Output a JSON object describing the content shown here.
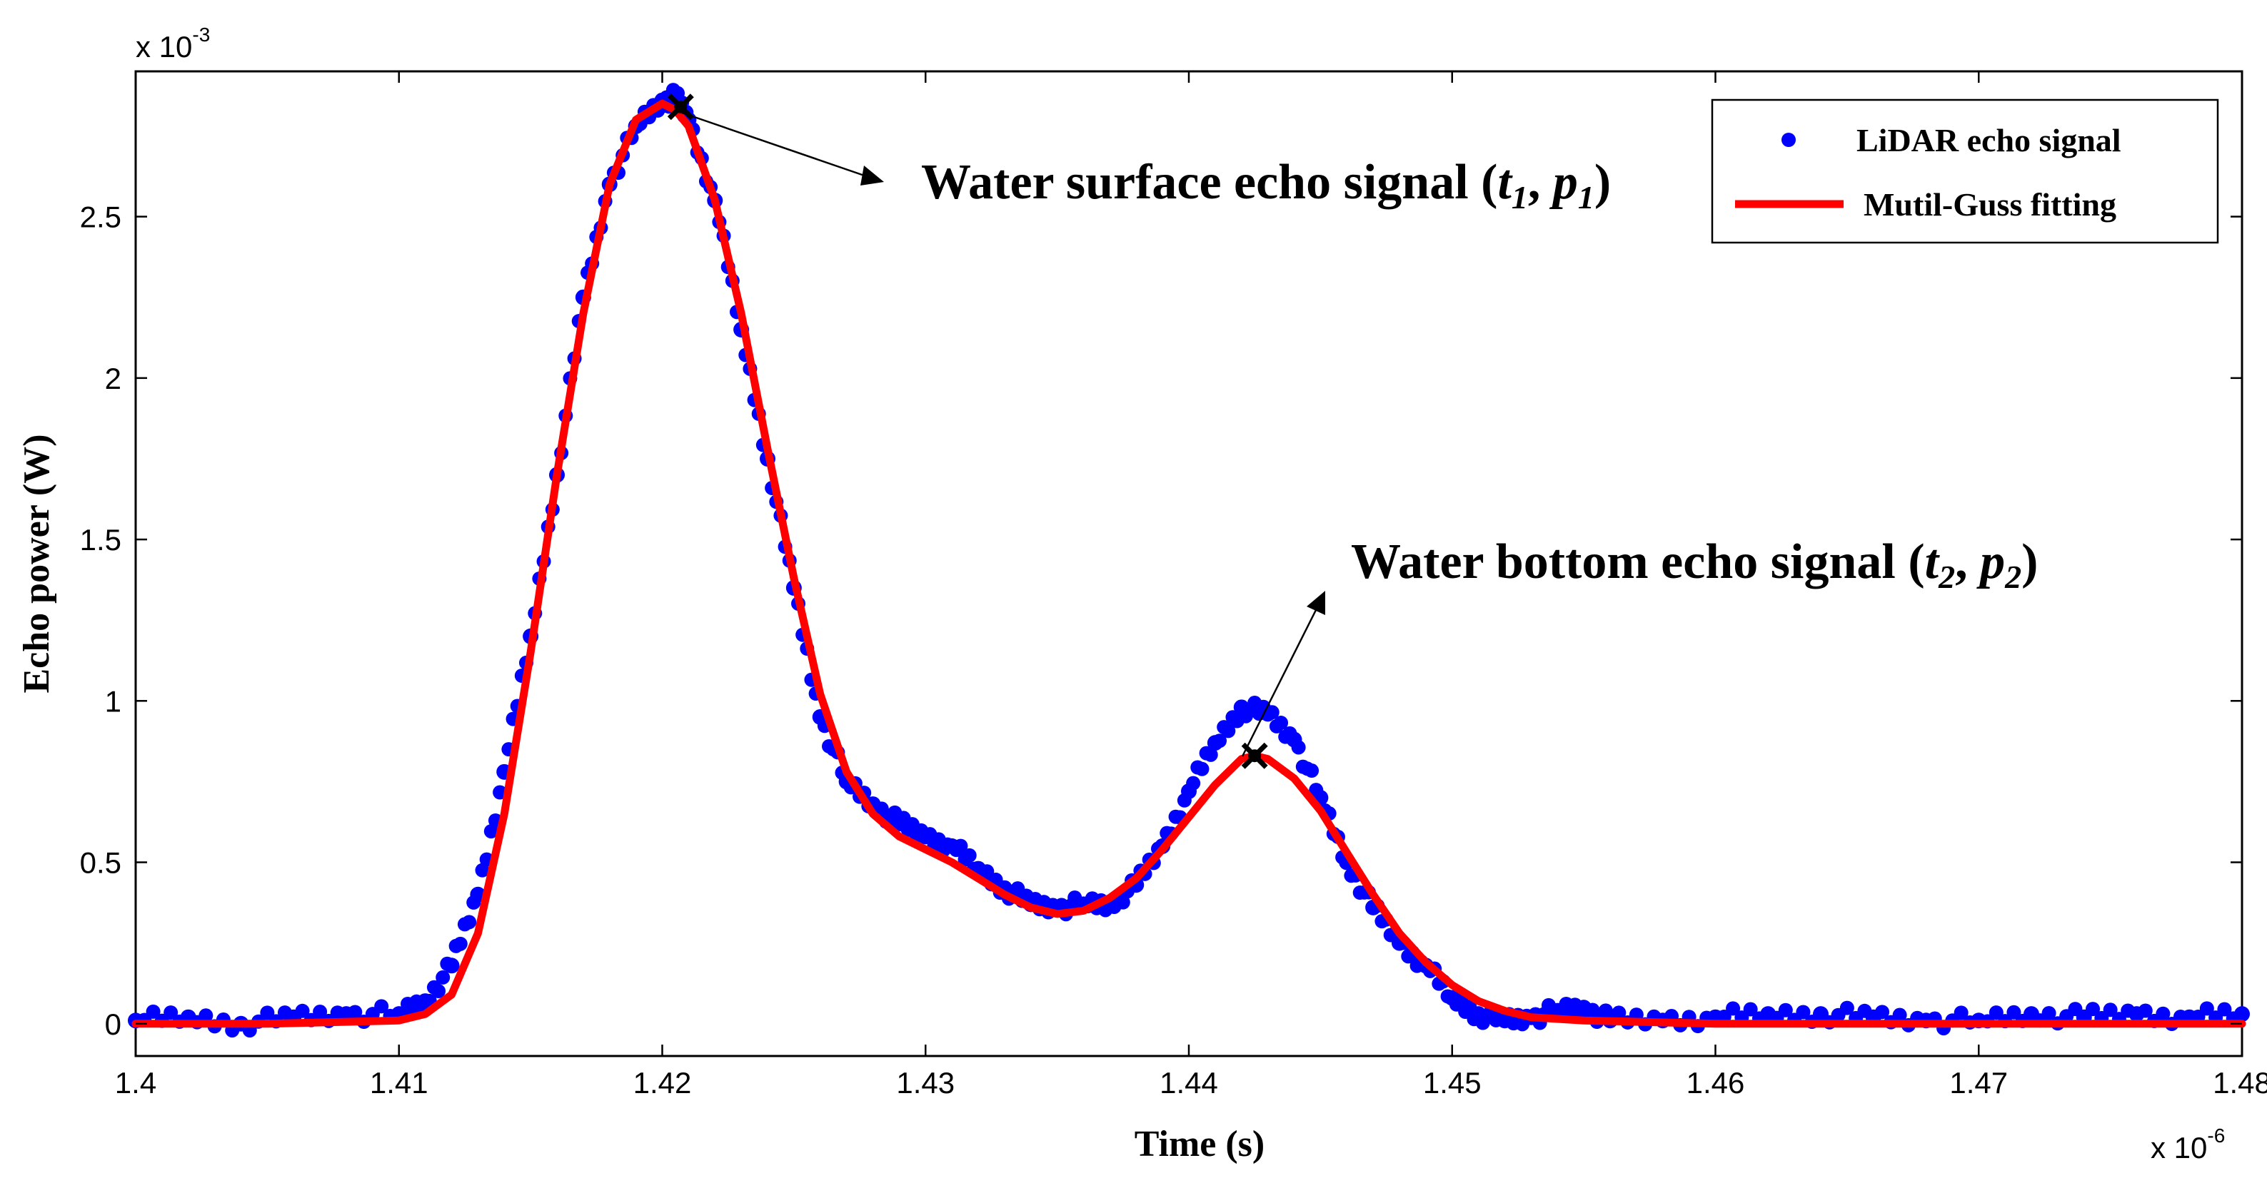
{
  "chart_data": {
    "type": "scatter",
    "title": "",
    "xlabel": "Time (s)",
    "ylabel": "Echo power (W)",
    "x_multiplier": {
      "base": "x 10",
      "exponent": "-6"
    },
    "y_multiplier": {
      "base": "x 10",
      "exponent": "-3"
    },
    "xlim": [
      1.4,
      1.48
    ],
    "ylim": [
      -0.1,
      2.95
    ],
    "x_ticks": [
      1.4,
      1.41,
      1.42,
      1.43,
      1.44,
      1.45,
      1.46,
      1.47,
      1.48
    ],
    "x_tick_labels": [
      "1.4",
      "1.41",
      "1.42",
      "1.43",
      "1.44",
      "1.45",
      "1.46",
      "1.47",
      "1.48"
    ],
    "y_ticks": [
      0,
      0.5,
      1,
      1.5,
      2,
      2.5
    ],
    "y_tick_labels": [
      "0",
      "0.5",
      "1",
      "1.5",
      "2",
      "2.5"
    ],
    "series": [
      {
        "name": "LiDAR echo signal",
        "style": "markers",
        "color": "#0000ff",
        "x": [
          1.4,
          1.402,
          1.404,
          1.406,
          1.408,
          1.41,
          1.411,
          1.412,
          1.413,
          1.414,
          1.415,
          1.416,
          1.417,
          1.418,
          1.419,
          1.42,
          1.4205,
          1.421,
          1.422,
          1.423,
          1.424,
          1.425,
          1.426,
          1.427,
          1.428,
          1.429,
          1.43,
          1.431,
          1.432,
          1.433,
          1.434,
          1.435,
          1.436,
          1.437,
          1.438,
          1.439,
          1.44,
          1.441,
          1.442,
          1.443,
          1.444,
          1.445,
          1.446,
          1.447,
          1.448,
          1.449,
          1.45,
          1.451,
          1.452,
          1.453,
          1.454,
          1.455,
          1.456,
          1.458,
          1.46,
          1.462,
          1.464,
          1.466,
          1.468,
          1.47,
          1.472,
          1.474,
          1.476,
          1.478,
          1.48
        ],
        "y": [
          0.01,
          0.02,
          0,
          0.02,
          0.03,
          0.03,
          0.07,
          0.18,
          0.4,
          0.78,
          1.2,
          1.7,
          2.25,
          2.6,
          2.78,
          2.86,
          2.87,
          2.8,
          2.55,
          2.15,
          1.75,
          1.35,
          0.95,
          0.75,
          0.68,
          0.62,
          0.58,
          0.55,
          0.48,
          0.42,
          0.37,
          0.36,
          0.37,
          0.37,
          0.43,
          0.55,
          0.72,
          0.87,
          0.98,
          0.96,
          0.88,
          0.7,
          0.5,
          0.36,
          0.25,
          0.18,
          0.08,
          0.03,
          0.01,
          0.02,
          0.04,
          0.05,
          0.01,
          0.01,
          0.02,
          0.03,
          0.03,
          0.02,
          0.01,
          0.01,
          0.03,
          0.02,
          0.03,
          0.02,
          0.03
        ]
      },
      {
        "name": "Mutil-Guss fitting",
        "style": "line",
        "color": "#ff0000",
        "x": [
          1.4,
          1.405,
          1.41,
          1.411,
          1.412,
          1.413,
          1.414,
          1.415,
          1.416,
          1.417,
          1.418,
          1.419,
          1.42,
          1.4205,
          1.421,
          1.422,
          1.423,
          1.424,
          1.425,
          1.426,
          1.427,
          1.428,
          1.429,
          1.43,
          1.431,
          1.432,
          1.433,
          1.434,
          1.435,
          1.436,
          1.437,
          1.438,
          1.439,
          1.44,
          1.441,
          1.442,
          1.4425,
          1.443,
          1.444,
          1.445,
          1.446,
          1.447,
          1.448,
          1.449,
          1.45,
          1.451,
          1.452,
          1.453,
          1.455,
          1.46,
          1.47,
          1.48
        ],
        "y": [
          0,
          0,
          0.01,
          0.03,
          0.09,
          0.28,
          0.65,
          1.15,
          1.7,
          2.2,
          2.6,
          2.8,
          2.85,
          2.83,
          2.78,
          2.55,
          2.2,
          1.78,
          1.38,
          1.02,
          0.78,
          0.65,
          0.58,
          0.54,
          0.5,
          0.45,
          0.4,
          0.36,
          0.34,
          0.35,
          0.39,
          0.45,
          0.54,
          0.64,
          0.74,
          0.82,
          0.83,
          0.82,
          0.76,
          0.66,
          0.53,
          0.4,
          0.28,
          0.19,
          0.12,
          0.07,
          0.04,
          0.02,
          0.01,
          0,
          0,
          0
        ]
      }
    ],
    "markers": [
      {
        "x": 1.4207,
        "y": 2.84
      },
      {
        "x": 1.4425,
        "y": 0.83
      }
    ],
    "annotations": [
      {
        "text": "Water surface echo signal",
        "var1": "t",
        "sub1": "1",
        "var2": "p",
        "sub2": "1"
      },
      {
        "text": "Water bottom echo signal",
        "var1": "t",
        "sub1": "2",
        "var2": "p",
        "sub2": "2"
      }
    ],
    "legend": {
      "position": "top-right"
    },
    "grid": false
  },
  "colors": {
    "scatter": "#0000ff",
    "fit": "#ff0000",
    "axis": "#000000",
    "background": "#ffffff"
  }
}
